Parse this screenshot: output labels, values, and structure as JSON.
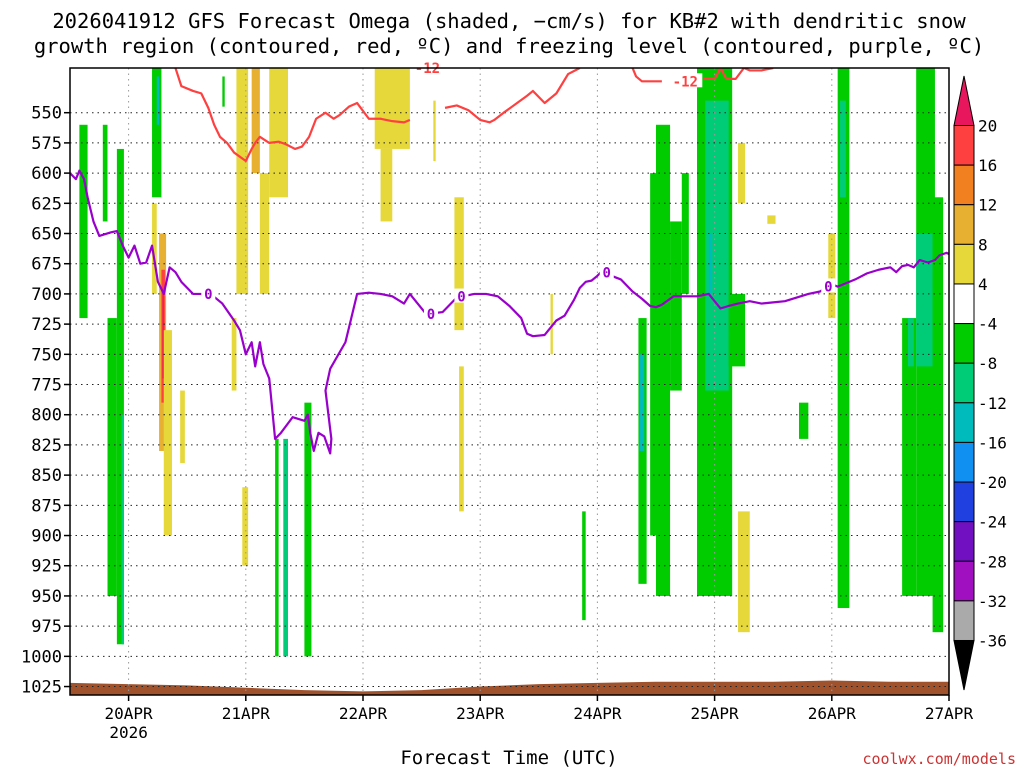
{
  "chart_data": {
    "type": "heatmap",
    "title_line1": "2026041912 GFS Forecast Omega (shaded, −cm/s) for KB#2 with dendritic snow",
    "title_line2": "growth region (contoured, red, ºC) and freezing level (contoured, purple, ºC)",
    "xlabel": "Forecast Time (UTC)",
    "credit": "coolwx.com/models",
    "x_range_days": [
      -0.5,
      7.0
    ],
    "p_range_hpa": [
      1032,
      513
    ],
    "x_ticks": [
      {
        "day": 0,
        "label": "20APR",
        "sub": "2026"
      },
      {
        "day": 1,
        "label": "21APR"
      },
      {
        "day": 2,
        "label": "22APR"
      },
      {
        "day": 3,
        "label": "23APR"
      },
      {
        "day": 4,
        "label": "24APR"
      },
      {
        "day": 5,
        "label": "25APR"
      },
      {
        "day": 6,
        "label": "26APR"
      },
      {
        "day": 7,
        "label": "27APR"
      }
    ],
    "y_ticks": [
      550,
      575,
      600,
      625,
      650,
      675,
      700,
      725,
      750,
      775,
      800,
      825,
      850,
      875,
      900,
      925,
      950,
      975,
      1000,
      1025
    ],
    "colorbar": {
      "labels": [
        "20",
        "16",
        "12",
        "8",
        "4",
        "-4",
        "-8",
        "-12",
        "-16",
        "-20",
        "-24",
        "-28",
        "-32",
        "-36"
      ],
      "colors": [
        "#e8175d",
        "#ff4040",
        "#f08020",
        "#e8b030",
        "#e6d83a",
        "#ffffff",
        "#00cc00",
        "#00cc77",
        "#00bbbb",
        "#1090f0",
        "#2040e0",
        "#7010c0",
        "#a010c0",
        "#aaaaaa",
        "#000000"
      ]
    },
    "shading": [
      {
        "c": "#00cc00",
        "d0": -0.42,
        "d1": -0.35,
        "p0": 560,
        "p1": 720
      },
      {
        "c": "#00cc00",
        "d0": -0.22,
        "d1": -0.18,
        "p0": 560,
        "p1": 640
      },
      {
        "c": "#00cc00",
        "d0": -0.18,
        "d1": -0.1,
        "p0": 720,
        "p1": 950
      },
      {
        "c": "#00cc00",
        "d0": -0.1,
        "d1": -0.04,
        "p0": 580,
        "p1": 990
      },
      {
        "c": "#00cc77",
        "d0": -0.06,
        "d1": -0.04,
        "p0": 800,
        "p1": 990
      },
      {
        "c": "#00cc00",
        "d0": 0.2,
        "d1": 0.28,
        "p0": 513,
        "p1": 620
      },
      {
        "c": "#00bbbb",
        "d0": 0.24,
        "d1": 0.26,
        "p0": 520,
        "p1": 560
      },
      {
        "c": "#e6d83a",
        "d0": 0.2,
        "d1": 0.24,
        "p0": 625,
        "p1": 700
      },
      {
        "c": "#e8b030",
        "d0": 0.26,
        "d1": 0.32,
        "p0": 650,
        "p1": 830
      },
      {
        "c": "#ff4040",
        "d0": 0.28,
        "d1": 0.31,
        "p0": 680,
        "p1": 790
      },
      {
        "c": "#e8175d",
        "d0": 0.29,
        "d1": 0.3,
        "p0": 700,
        "p1": 770
      },
      {
        "c": "#e6d83a",
        "d0": 0.3,
        "d1": 0.37,
        "p0": 730,
        "p1": 900
      },
      {
        "c": "#e6d83a",
        "d0": 0.44,
        "d1": 0.48,
        "p0": 780,
        "p1": 840
      },
      {
        "c": "#00cc00",
        "d0": 0.8,
        "d1": 0.82,
        "p0": 520,
        "p1": 545
      },
      {
        "c": "#e6d83a",
        "d0": 0.88,
        "d1": 0.92,
        "p0": 720,
        "p1": 780
      },
      {
        "c": "#e6d83a",
        "d0": 0.92,
        "d1": 1.02,
        "p0": 513,
        "p1": 700
      },
      {
        "c": "#e8b030",
        "d0": 1.05,
        "d1": 1.12,
        "p0": 513,
        "p1": 600
      },
      {
        "c": "#e6d83a",
        "d0": 1.12,
        "d1": 1.2,
        "p0": 600,
        "p1": 700
      },
      {
        "c": "#e6d83a",
        "d0": 1.2,
        "d1": 1.36,
        "p0": 513,
        "p1": 620
      },
      {
        "c": "#e6d83a",
        "d0": 0.97,
        "d1": 1.02,
        "p0": 860,
        "p1": 925
      },
      {
        "c": "#00cc00",
        "d0": 1.25,
        "d1": 1.28,
        "p0": 820,
        "p1": 1000
      },
      {
        "c": "#00cc77",
        "d0": 1.32,
        "d1": 1.36,
        "p0": 820,
        "p1": 1000
      },
      {
        "c": "#00cc00",
        "d0": 1.5,
        "d1": 1.56,
        "p0": 790,
        "p1": 1000
      },
      {
        "c": "#e6d83a",
        "d0": 2.1,
        "d1": 2.4,
        "p0": 513,
        "p1": 580
      },
      {
        "c": "#e6d83a",
        "d0": 2.15,
        "d1": 2.25,
        "p0": 580,
        "p1": 640
      },
      {
        "c": "#e6d83a",
        "d0": 2.6,
        "d1": 2.62,
        "p0": 540,
        "p1": 590
      },
      {
        "c": "#e6d83a",
        "d0": 2.78,
        "d1": 2.86,
        "p0": 620,
        "p1": 730
      },
      {
        "c": "#e6d83a",
        "d0": 2.82,
        "d1": 2.86,
        "p0": 760,
        "p1": 880
      },
      {
        "c": "#e6d83a",
        "d0": 3.6,
        "d1": 3.62,
        "p0": 700,
        "p1": 750
      },
      {
        "c": "#00cc00",
        "d0": 3.87,
        "d1": 3.9,
        "p0": 880,
        "p1": 970
      },
      {
        "c": "#00cc00",
        "d0": 4.35,
        "d1": 4.42,
        "p0": 720,
        "p1": 940
      },
      {
        "c": "#00bbbb",
        "d0": 4.36,
        "d1": 4.4,
        "p0": 750,
        "p1": 830
      },
      {
        "c": "#00cc00",
        "d0": 4.45,
        "d1": 4.52,
        "p0": 600,
        "p1": 900
      },
      {
        "c": "#00cc00",
        "d0": 4.5,
        "d1": 4.62,
        "p0": 560,
        "p1": 950
      },
      {
        "c": "#00cc00",
        "d0": 4.62,
        "d1": 4.72,
        "p0": 640,
        "p1": 780
      },
      {
        "c": "#00cc00",
        "d0": 4.72,
        "d1": 4.78,
        "p0": 600,
        "p1": 700
      },
      {
        "c": "#00cc00",
        "d0": 4.85,
        "d1": 5.15,
        "p0": 513,
        "p1": 950
      },
      {
        "c": "#00cc77",
        "d0": 4.92,
        "d1": 5.12,
        "p0": 540,
        "p1": 780
      },
      {
        "c": "#00bbbb",
        "d0": 4.95,
        "d1": 4.98,
        "p0": 650,
        "p1": 700
      },
      {
        "c": "#00cc00",
        "d0": 5.12,
        "d1": 5.26,
        "p0": 700,
        "p1": 760
      },
      {
        "c": "#e6d83a",
        "d0": 5.2,
        "d1": 5.26,
        "p0": 575,
        "p1": 625
      },
      {
        "c": "#e6d83a",
        "d0": 5.2,
        "d1": 5.3,
        "p0": 880,
        "p1": 980
      },
      {
        "c": "#e6d83a",
        "d0": 5.45,
        "d1": 5.52,
        "p0": 635,
        "p1": 642
      },
      {
        "c": "#00cc00",
        "d0": 5.72,
        "d1": 5.8,
        "p0": 790,
        "p1": 820
      },
      {
        "c": "#e6d83a",
        "d0": 5.97,
        "d1": 6.03,
        "p0": 650,
        "p1": 720
      },
      {
        "c": "#00cc00",
        "d0": 6.05,
        "d1": 6.15,
        "p0": 513,
        "p1": 960
      },
      {
        "c": "#00cc77",
        "d0": 6.07,
        "d1": 6.12,
        "p0": 540,
        "p1": 620
      },
      {
        "c": "#00cc00",
        "d0": 6.6,
        "d1": 6.72,
        "p0": 720,
        "p1": 950
      },
      {
        "c": "#00cc77",
        "d0": 6.65,
        "d1": 6.7,
        "p0": 720,
        "p1": 760
      },
      {
        "c": "#00cc00",
        "d0": 6.72,
        "d1": 6.88,
        "p0": 513,
        "p1": 950
      },
      {
        "c": "#00cc77",
        "d0": 6.72,
        "d1": 6.86,
        "p0": 650,
        "p1": 760
      },
      {
        "c": "#00cc00",
        "d0": 6.86,
        "d1": 6.95,
        "p0": 620,
        "p1": 980
      }
    ],
    "series": [
      {
        "name": "freezing level (0 ºC)",
        "color": "#9900cc",
        "label": "0",
        "label_days": [
          0.68,
          2.58,
          2.84,
          4.08,
          5.97
        ],
        "points": [
          [
            -0.5,
            600
          ],
          [
            -0.45,
            605
          ],
          [
            -0.42,
            598
          ],
          [
            -0.38,
            605
          ],
          [
            -0.35,
            620
          ],
          [
            -0.3,
            640
          ],
          [
            -0.25,
            652
          ],
          [
            -0.15,
            649
          ],
          [
            -0.1,
            648
          ],
          [
            -0.05,
            660
          ],
          [
            0.0,
            670
          ],
          [
            0.05,
            660
          ],
          [
            0.1,
            675
          ],
          [
            0.15,
            674
          ],
          [
            0.2,
            660
          ],
          [
            0.25,
            690
          ],
          [
            0.3,
            700
          ],
          [
            0.35,
            678
          ],
          [
            0.4,
            682
          ],
          [
            0.45,
            690
          ],
          [
            0.55,
            700
          ],
          [
            0.62,
            700
          ],
          [
            0.7,
            700
          ],
          [
            0.8,
            708
          ],
          [
            0.9,
            722
          ],
          [
            0.95,
            730
          ],
          [
            1.0,
            750
          ],
          [
            1.05,
            740
          ],
          [
            1.08,
            760
          ],
          [
            1.12,
            740
          ],
          [
            1.15,
            758
          ],
          [
            1.2,
            770
          ],
          [
            1.22,
            790
          ],
          [
            1.25,
            820
          ],
          [
            1.3,
            815
          ],
          [
            1.4,
            802
          ],
          [
            1.5,
            805
          ],
          [
            1.53,
            800
          ],
          [
            1.55,
            815
          ],
          [
            1.58,
            830
          ],
          [
            1.62,
            815
          ],
          [
            1.67,
            818
          ],
          [
            1.72,
            832
          ],
          [
            1.73,
            820
          ],
          [
            1.68,
            780
          ],
          [
            1.72,
            762
          ],
          [
            1.85,
            740
          ],
          [
            1.9,
            720
          ],
          [
            1.95,
            700
          ],
          [
            2.05,
            699
          ],
          [
            2.15,
            700
          ],
          [
            2.25,
            702
          ],
          [
            2.35,
            708
          ],
          [
            2.4,
            700
          ],
          [
            2.5,
            712
          ],
          [
            2.55,
            718
          ],
          [
            2.6,
            716
          ],
          [
            2.68,
            715
          ],
          [
            2.8,
            703
          ],
          [
            2.95,
            700
          ],
          [
            3.05,
            700
          ],
          [
            3.15,
            702
          ],
          [
            3.25,
            710
          ],
          [
            3.35,
            720
          ],
          [
            3.4,
            733
          ],
          [
            3.45,
            735
          ],
          [
            3.55,
            734
          ],
          [
            3.65,
            722
          ],
          [
            3.72,
            718
          ],
          [
            3.8,
            705
          ],
          [
            3.85,
            695
          ],
          [
            3.9,
            690
          ],
          [
            3.95,
            689
          ],
          [
            4.0,
            685
          ],
          [
            4.05,
            680
          ],
          [
            4.12,
            685
          ],
          [
            4.2,
            688
          ],
          [
            4.3,
            698
          ],
          [
            4.38,
            704
          ],
          [
            4.45,
            710
          ],
          [
            4.5,
            711
          ],
          [
            4.55,
            709
          ],
          [
            4.65,
            702
          ],
          [
            4.75,
            702
          ],
          [
            4.85,
            702
          ],
          [
            4.95,
            700
          ],
          [
            5.0,
            706
          ],
          [
            5.05,
            712
          ],
          [
            5.12,
            710
          ],
          [
            5.2,
            708
          ],
          [
            5.3,
            706
          ],
          [
            5.4,
            708
          ],
          [
            5.5,
            707
          ],
          [
            5.6,
            706
          ],
          [
            5.7,
            703
          ],
          [
            5.8,
            700
          ],
          [
            5.9,
            698
          ],
          [
            6.0,
            692
          ],
          [
            6.05,
            694
          ],
          [
            6.1,
            692
          ],
          [
            6.2,
            688
          ],
          [
            6.3,
            683
          ],
          [
            6.4,
            680
          ],
          [
            6.5,
            678
          ],
          [
            6.55,
            682
          ],
          [
            6.6,
            677
          ],
          [
            6.65,
            676
          ],
          [
            6.7,
            678
          ],
          [
            6.75,
            672
          ],
          [
            6.82,
            674
          ],
          [
            6.88,
            672
          ],
          [
            6.92,
            668
          ],
          [
            6.98,
            666
          ],
          [
            7.0,
            667
          ]
        ]
      },
      {
        "name": "dendritic growth (−12 ºC) segment A",
        "color": "#ff4040",
        "label": "",
        "label_days": [],
        "points": [
          [
            0.4,
            513
          ],
          [
            0.45,
            528
          ],
          [
            0.55,
            532
          ],
          [
            0.62,
            534
          ],
          [
            0.68,
            546
          ],
          [
            0.73,
            560
          ],
          [
            0.78,
            570
          ],
          [
            0.84,
            575
          ],
          [
            0.9,
            583
          ],
          [
            1.0,
            590
          ],
          [
            1.05,
            580
          ],
          [
            1.08,
            575
          ],
          [
            1.12,
            570
          ],
          [
            1.2,
            575
          ],
          [
            1.28,
            574
          ],
          [
            1.34,
            576
          ],
          [
            1.42,
            580
          ],
          [
            1.48,
            578
          ],
          [
            1.54,
            570
          ],
          [
            1.6,
            555
          ],
          [
            1.68,
            550
          ],
          [
            1.75,
            555
          ],
          [
            1.8,
            552
          ],
          [
            1.88,
            545
          ],
          [
            1.95,
            542
          ],
          [
            2.05,
            555
          ],
          [
            2.15,
            555
          ],
          [
            2.25,
            557
          ],
          [
            2.35,
            558
          ],
          [
            2.4,
            556
          ]
        ]
      },
      {
        "name": "dendritic growth (−12 ºC) segment B",
        "color": "#ff4040",
        "label": "-12",
        "label_days": [
          2.55
        ],
        "points": [
          [
            2.7,
            546
          ],
          [
            2.8,
            544
          ],
          [
            2.9,
            548
          ],
          [
            3.0,
            556
          ],
          [
            3.08,
            558
          ],
          [
            3.12,
            556
          ],
          [
            3.2,
            550
          ],
          [
            3.3,
            543
          ],
          [
            3.4,
            536
          ],
          [
            3.45,
            532
          ],
          [
            3.55,
            542
          ],
          [
            3.65,
            534
          ],
          [
            3.75,
            518
          ],
          [
            3.85,
            513
          ]
        ]
      },
      {
        "name": "dendritic growth (−12 ºC) segment C",
        "color": "#ff4040",
        "label": "-12",
        "label_days": [
          4.75
        ],
        "points": [
          [
            4.3,
            513
          ],
          [
            4.33,
            520
          ],
          [
            4.38,
            524
          ],
          [
            4.45,
            524
          ],
          [
            4.55,
            524
          ]
        ]
      },
      {
        "name": "dendritic growth (−12 ºC) segment D",
        "color": "#ff4040",
        "label": "",
        "label_days": [],
        "points": [
          [
            4.9,
            522
          ],
          [
            5.0,
            522
          ],
          [
            5.05,
            513
          ],
          [
            5.1,
            522
          ],
          [
            5.18,
            522
          ],
          [
            5.25,
            513
          ],
          [
            5.3,
            515
          ],
          [
            5.4,
            515
          ],
          [
            5.5,
            513
          ]
        ]
      }
    ],
    "ground": {
      "color": "#a0522d",
      "base_hpa": 1032,
      "top_hpa": [
        [
          -0.5,
          1022
        ],
        [
          0.0,
          1023
        ],
        [
          0.5,
          1024
        ],
        [
          1.0,
          1026
        ],
        [
          1.5,
          1028
        ],
        [
          2.0,
          1029
        ],
        [
          2.5,
          1028
        ],
        [
          3.0,
          1025
        ],
        [
          3.5,
          1023
        ],
        [
          4.0,
          1022
        ],
        [
          4.5,
          1021
        ],
        [
          5.0,
          1021
        ],
        [
          5.5,
          1021
        ],
        [
          6.0,
          1020
        ],
        [
          6.5,
          1021
        ],
        [
          7.0,
          1021
        ]
      ]
    }
  }
}
